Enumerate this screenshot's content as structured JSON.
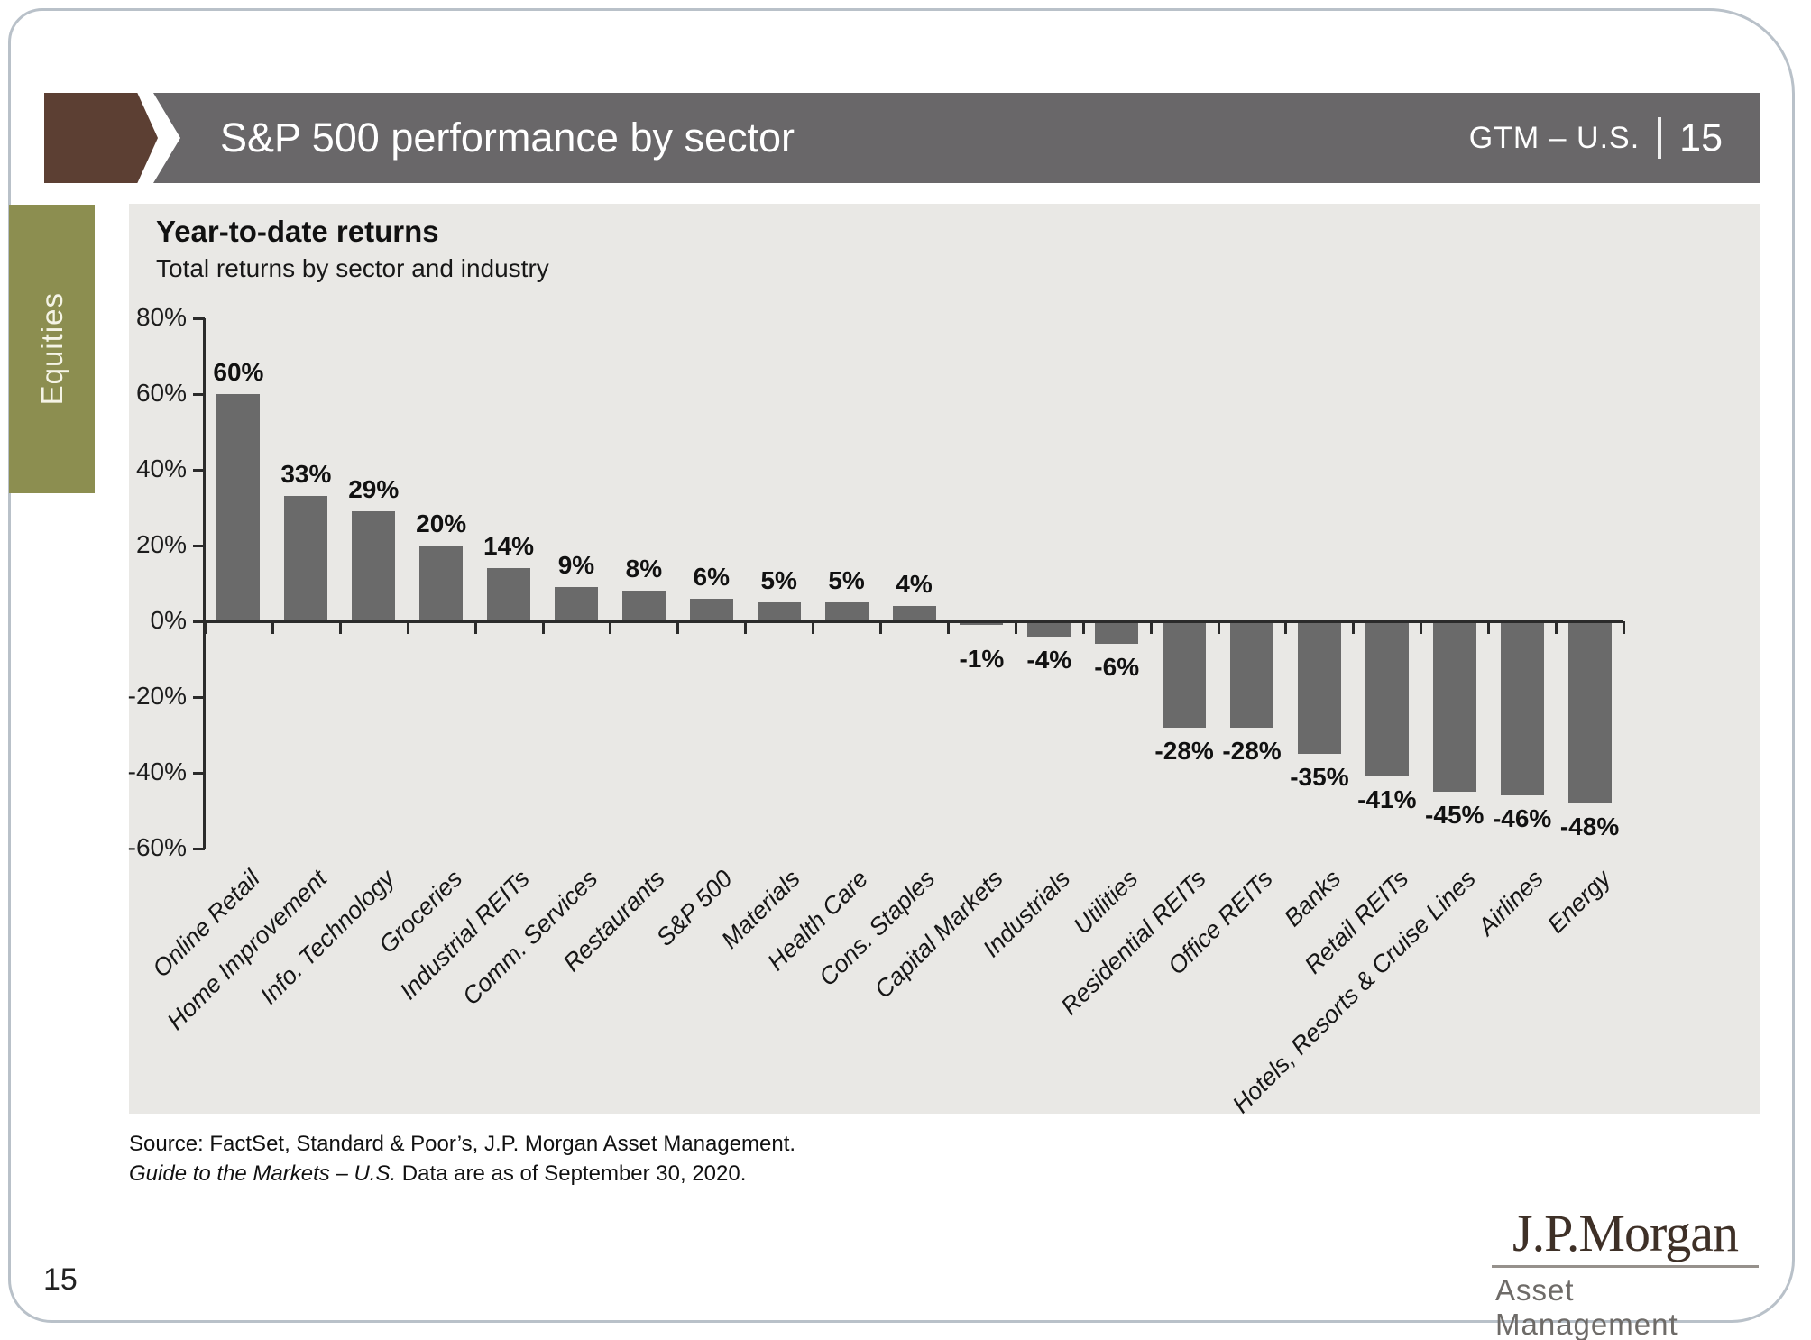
{
  "page": {
    "number": "15"
  },
  "header": {
    "title": "S&P 500 performance by sector",
    "gtm_label": "GTM – U.S.",
    "divider": "|",
    "page_number": "15"
  },
  "sidebar": {
    "tab_label": "Equities"
  },
  "chart_data": {
    "type": "bar",
    "title": "Year-to-date returns",
    "subtitle": "Total returns by sector and industry",
    "categories": [
      "Online Retail",
      "Home Improvement",
      "Info. Technology",
      "Groceries",
      "Industrial REITs",
      "Comm. Services",
      "Restaurants",
      "S&P 500",
      "Materials",
      "Health Care",
      "Cons. Staples",
      "Capital Markets",
      "Industrials",
      "Utilities",
      "Residential REITs",
      "Office REITs",
      "Banks",
      "Retail REITs",
      "Hotels, Resorts & Cruise Lines",
      "Airlines",
      "Energy"
    ],
    "values": [
      60,
      33,
      29,
      20,
      14,
      9,
      8,
      6,
      5,
      5,
      4,
      -1,
      -4,
      -6,
      -28,
      -28,
      -35,
      -41,
      -45,
      -46,
      -48
    ],
    "value_label_format": "percent",
    "ylim": [
      -60,
      80
    ],
    "ytick_step": 20,
    "grid": false,
    "legend": "none",
    "bar_color": "#6a6a6a"
  },
  "footer": {
    "source_line1": "Source: FactSet, Standard & Poor’s, J.P. Morgan Asset Management.",
    "source_line2_italic": "Guide to the Markets – U.S.",
    "source_line2_rest": " Data are as of September 30, 2020.",
    "logo_name": "J.P.Morgan",
    "logo_subtitle": "Asset Management"
  },
  "colors": {
    "brown": "#5c3f33",
    "header_gray": "#696769",
    "olive": "#8c8e50",
    "panel_bg": "#e9e8e5",
    "bar": "#6a6a6a",
    "axis": "#2b2b2b",
    "border": "#b9c1c9"
  }
}
